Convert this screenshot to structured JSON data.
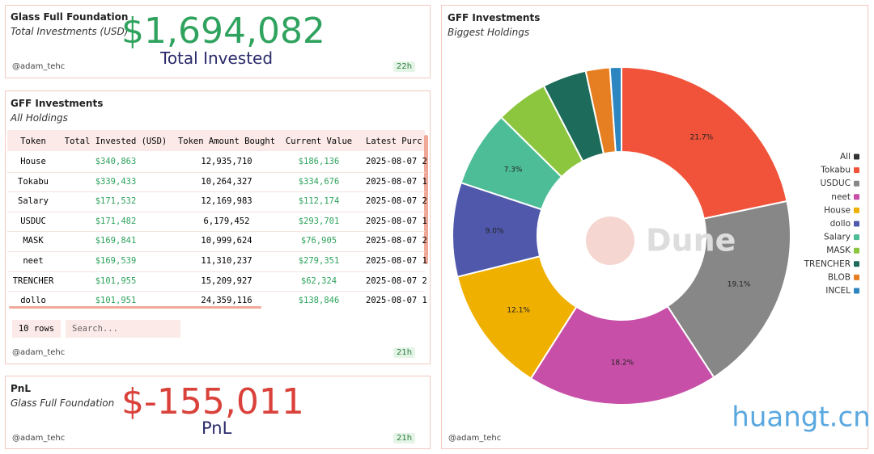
{
  "total_panel": {
    "title": "Glass Full Foundation",
    "subtitle": "Total Investments (USD)",
    "counter": "$1,694,082",
    "overlay": "Total Invested",
    "author": "@adam_tehc",
    "age": "22h"
  },
  "table_panel": {
    "title": "GFF Investments",
    "subtitle": "All Holdings",
    "columns": [
      "Token",
      "Total Invested (USD)",
      "Token Amount Bought",
      "Current Value",
      "Latest Purc"
    ],
    "rows": [
      [
        "House",
        "$340,863",
        "12,935,710",
        "$186,136",
        "2025-08-07 2"
      ],
      [
        "Tokabu",
        "$339,433",
        "10,264,327",
        "$334,676",
        "2025-08-07 1"
      ],
      [
        "Salary",
        "$171,532",
        "12,169,983",
        "$112,174",
        "2025-08-07 2"
      ],
      [
        "USDUC",
        "$171,482",
        "6,179,452",
        "$293,701",
        "2025-08-07 1"
      ],
      [
        "MASK",
        "$169,841",
        "10,999,624",
        "$76,905",
        "2025-08-07 2"
      ],
      [
        "neet",
        "$169,539",
        "11,310,237",
        "$279,351",
        "2025-08-07 1"
      ],
      [
        "TRENCHER",
        "$101,955",
        "15,209,927",
        "$62,324",
        "2025-08-07 2"
      ],
      [
        "dollo",
        "$101,951",
        "24,359,116",
        "$138,846",
        "2025-08-07 1"
      ]
    ],
    "rows_selector": "10 rows",
    "search_placeholder": "Search...",
    "author": "@adam_tehc",
    "age": "21h"
  },
  "pnl_panel": {
    "title": "PnL",
    "subtitle": "Glass Full Foundation",
    "counter": "$-155,011",
    "overlay": "PnL",
    "author": "@adam_tehc",
    "age": "21h"
  },
  "chart_data": {
    "type": "pie",
    "title": "GFF Investments",
    "subtitle": "Biggest Holdings",
    "categories": [
      "All",
      "Tokabu",
      "USDUC",
      "neet",
      "House",
      "dollo",
      "Salary",
      "MASK",
      "TRENCHER",
      "BLOB",
      "INCEL"
    ],
    "values": [
      null,
      21.7,
      19.1,
      18.2,
      12.1,
      9.0,
      7.3,
      5.0,
      4.2,
      2.3,
      1.1
    ],
    "value_labels": [
      null,
      "21.7%",
      "19.1%",
      "18.2%",
      "12.1%",
      "9.0%",
      "7.3%",
      null,
      null,
      null,
      null
    ],
    "colors": [
      "#333333",
      "#f0533a",
      "#878787",
      "#c84fa8",
      "#f0b000",
      "#4f58ab",
      "#4dbd98",
      "#8cc63f",
      "#1d6b5a",
      "#e67e22",
      "#2e86c1"
    ],
    "legend": "right",
    "watermark": "Dune",
    "author": "@adam_tehc"
  },
  "site_watermark": "huangt.cn"
}
